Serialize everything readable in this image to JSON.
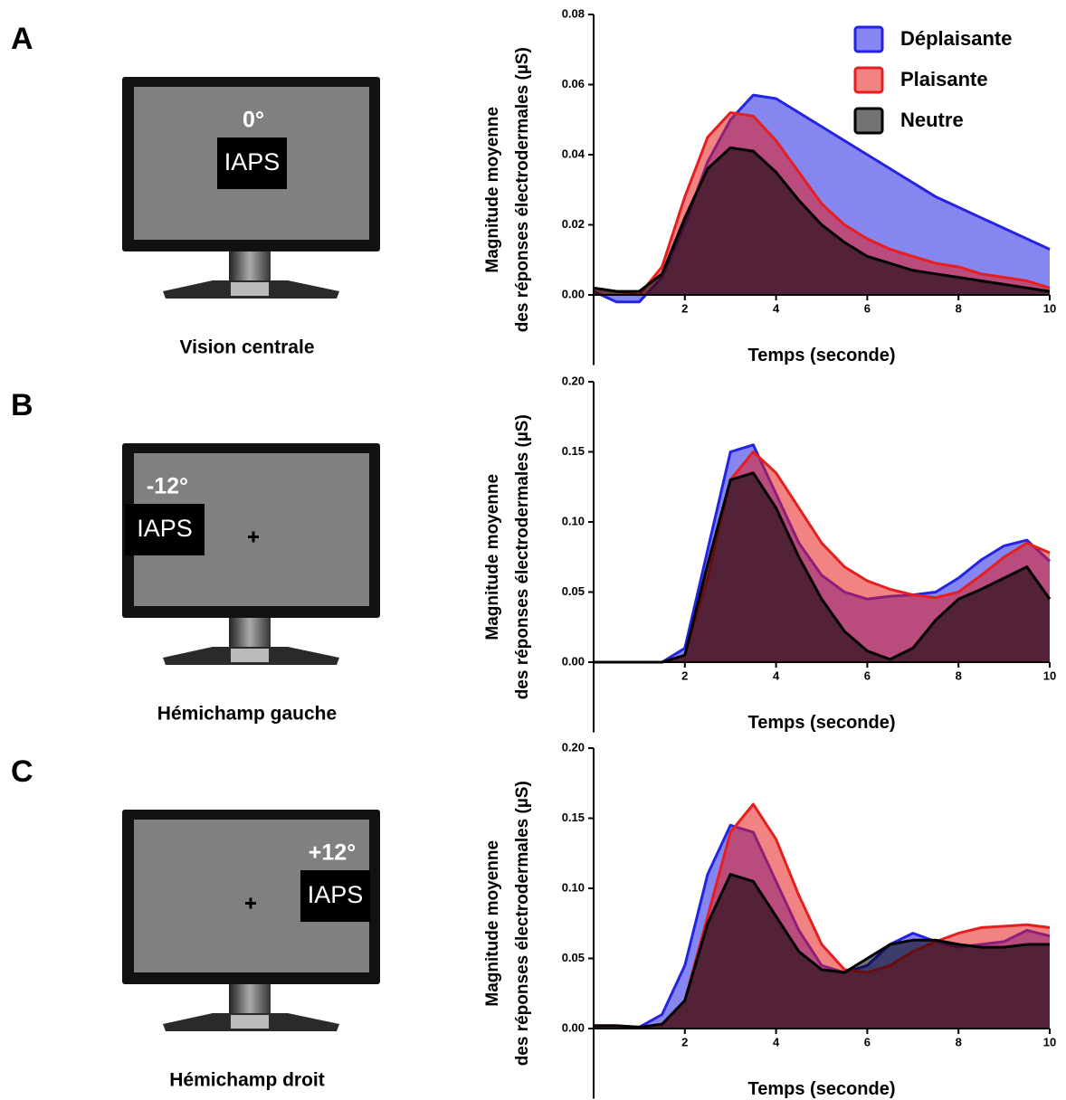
{
  "panels": [
    {
      "letter": "A",
      "caption": "Vision centrale",
      "angle": "0°",
      "stimulus": "IAPS"
    },
    {
      "letter": "B",
      "caption": "Hémichamp gauche",
      "angle": "-12°",
      "stimulus": "IAPS"
    },
    {
      "letter": "C",
      "caption": "Hémichamp droit",
      "angle": "+12°",
      "stimulus": "IAPS"
    }
  ],
  "chart_data": [
    {
      "type": "area",
      "xlabel": "Temps (seconde)",
      "ylabel": [
        "Magnitude moyenne",
        "des réponses électrodermales (µS)"
      ],
      "legend": "upper right",
      "x": [
        0,
        0.5,
        1,
        1.5,
        2,
        2.5,
        3,
        3.5,
        4,
        4.5,
        5,
        5.5,
        6,
        6.5,
        7,
        7.5,
        8,
        8.5,
        9,
        9.5,
        10
      ],
      "xlim": [
        0,
        10
      ],
      "xticks": [
        2,
        4,
        6,
        8,
        10
      ],
      "ylim": [
        -0.02,
        0.08
      ],
      "yticks": [
        {
          "value": 0,
          "label": "0.00"
        },
        0.02,
        0.04,
        0.06,
        0.08
      ],
      "series": [
        {
          "name": "Déplaisante",
          "color": "#2323e6",
          "values": [
            0.001,
            -0.002,
            -0.002,
            0.005,
            0.02,
            0.038,
            0.05,
            0.057,
            0.056,
            0.052,
            0.048,
            0.044,
            0.04,
            0.036,
            0.032,
            0.028,
            0.025,
            0.022,
            0.019,
            0.016,
            0.013
          ]
        },
        {
          "name": "Plaisante",
          "color": "#e61e1e",
          "values": [
            0.002,
            0.001,
            0,
            0.008,
            0.028,
            0.045,
            0.052,
            0.051,
            0.044,
            0.035,
            0.026,
            0.02,
            0.016,
            0.013,
            0.011,
            0.009,
            0.008,
            0.006,
            0.005,
            0.004,
            0.002
          ]
        },
        {
          "name": "Neutre",
          "color": "#000000",
          "values": [
            0.002,
            0.001,
            0.001,
            0.006,
            0.022,
            0.036,
            0.042,
            0.041,
            0.035,
            0.027,
            0.02,
            0.015,
            0.011,
            0.009,
            0.007,
            0.006,
            0.005,
            0.004,
            0.003,
            0.002,
            0.001
          ]
        }
      ]
    },
    {
      "type": "area",
      "xlabel": "Temps (seconde)",
      "ylabel": [
        "Magnitude moyenne",
        "des réponses électrodermales (µS)"
      ],
      "x": [
        0,
        0.5,
        1,
        1.5,
        2,
        2.5,
        3,
        3.5,
        4,
        4.5,
        5,
        5.5,
        6,
        6.5,
        7,
        7.5,
        8,
        8.5,
        9,
        9.5,
        10
      ],
      "xlim": [
        0,
        10
      ],
      "xticks": [
        2,
        4,
        6,
        8,
        10
      ],
      "ylim": [
        -0.05,
        0.2
      ],
      "yticks": [
        {
          "value": 0,
          "label": "0.00"
        },
        0.05,
        {
          "value": 0.1,
          "label": "0.10"
        },
        0.15,
        {
          "value": 0.2,
          "label": "0.20"
        }
      ],
      "series": [
        {
          "color": "#2323e6",
          "values": [
            0,
            0,
            0,
            0,
            0.01,
            0.08,
            0.15,
            0.155,
            0.12,
            0.085,
            0.062,
            0.05,
            0.045,
            0.047,
            0.048,
            0.05,
            0.06,
            0.073,
            0.083,
            0.087,
            0.072
          ]
        },
        {
          "color": "#e61e1e",
          "values": [
            0,
            0,
            0,
            0,
            0.005,
            0.06,
            0.13,
            0.15,
            0.135,
            0.11,
            0.085,
            0.068,
            0.058,
            0.052,
            0.048,
            0.046,
            0.05,
            0.062,
            0.075,
            0.085,
            0.078
          ]
        },
        {
          "color": "#000000",
          "values": [
            0,
            0,
            0,
            0,
            0.005,
            0.07,
            0.13,
            0.135,
            0.11,
            0.075,
            0.045,
            0.022,
            0.008,
            0.002,
            0.01,
            0.03,
            0.045,
            0.052,
            0.06,
            0.068,
            0.045
          ]
        }
      ]
    },
    {
      "type": "area",
      "xlabel": "Temps (seconde)",
      "ylabel": [
        "Magnitude moyenne",
        "des réponses électrodermales (µS)"
      ],
      "x": [
        0,
        0.5,
        1,
        1.5,
        2,
        2.5,
        3,
        3.5,
        4,
        4.5,
        5,
        5.5,
        6,
        6.5,
        7,
        7.5,
        8,
        8.5,
        9,
        9.5,
        10
      ],
      "xlim": [
        0,
        10
      ],
      "xticks": [
        2,
        4,
        6,
        8,
        10
      ],
      "ylim": [
        -0.05,
        0.2
      ],
      "yticks": [
        {
          "value": 0,
          "label": "0.00"
        },
        0.05,
        {
          "value": 0.1,
          "label": "0.10"
        },
        0.15,
        {
          "value": 0.2,
          "label": "0.20"
        }
      ],
      "series": [
        {
          "color": "#2323e6",
          "values": [
            0.002,
            0.002,
            0.001,
            0.01,
            0.045,
            0.11,
            0.145,
            0.14,
            0.105,
            0.07,
            0.045,
            0.04,
            0.045,
            0.06,
            0.068,
            0.062,
            0.058,
            0.06,
            0.062,
            0.07,
            0.066
          ]
        },
        {
          "color": "#e61e1e",
          "values": [
            0.002,
            0.002,
            0.001,
            0.003,
            0.02,
            0.08,
            0.14,
            0.16,
            0.135,
            0.095,
            0.06,
            0.042,
            0.04,
            0.045,
            0.055,
            0.062,
            0.068,
            0.072,
            0.073,
            0.074,
            0.072
          ]
        },
        {
          "color": "#000000",
          "values": [
            0.002,
            0.002,
            0.001,
            0.003,
            0.02,
            0.075,
            0.11,
            0.105,
            0.08,
            0.055,
            0.042,
            0.04,
            0.05,
            0.06,
            0.063,
            0.063,
            0.06,
            0.058,
            0.058,
            0.06,
            0.06
          ]
        }
      ]
    }
  ]
}
